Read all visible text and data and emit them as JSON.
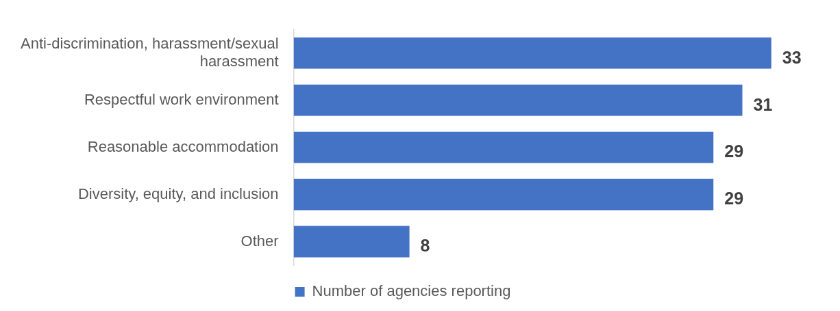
{
  "chart_data": {
    "type": "bar",
    "orientation": "horizontal",
    "relative": false,
    "categories": [
      "Anti-discrimination, harassment/sexual harassment",
      "Respectful work environment",
      "Reasonable accommodation",
      "Diversity, equity, and inclusion",
      "Other"
    ],
    "series": [
      {
        "name": "Number of agencies reporting",
        "color": "#4472c4",
        "values": [
          33,
          31,
          29,
          29,
          8
        ]
      }
    ],
    "data_labels": true,
    "grid": false,
    "legend": "bottom"
  }
}
